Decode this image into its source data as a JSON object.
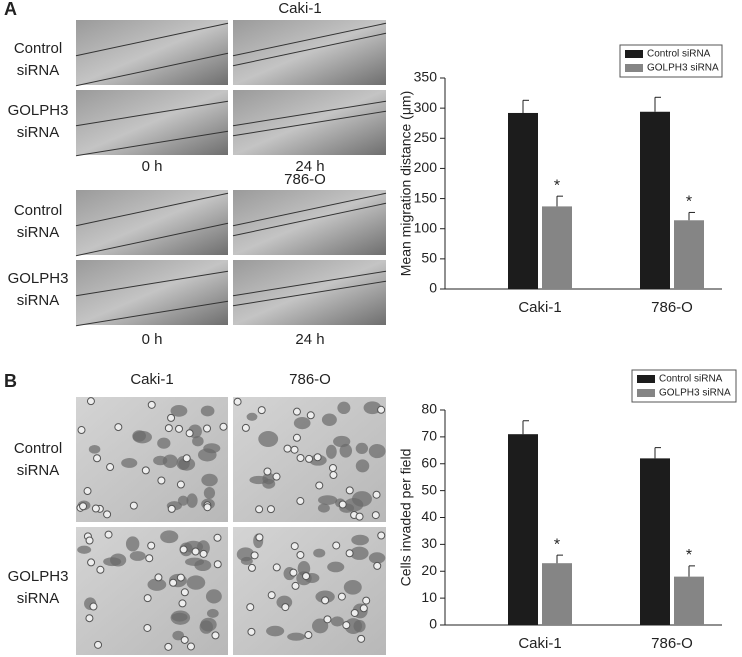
{
  "panel_labels": [
    "A",
    "B"
  ],
  "migration_images": {
    "lines": [
      "Caki-1",
      "786-O"
    ],
    "rows": [
      "Control siRNA",
      "GOLPH3 siRNA"
    ],
    "times": [
      "0 h",
      "24 h"
    ]
  },
  "invasion_images": {
    "columns": [
      "Caki-1",
      "786-O"
    ],
    "rows": [
      "Control siRNA",
      "GOLPH3 siRNA"
    ]
  },
  "chart_data": [
    {
      "type": "bar",
      "ylabel": "Mean migration distance (μm)",
      "categories": [
        "Caki-1",
        "786-O"
      ],
      "series": [
        {
          "name": "Control siRNA",
          "color": "#1c1c1c",
          "values": [
            292,
            294
          ],
          "errors": [
            21,
            24
          ]
        },
        {
          "name": "GOLPH3 siRNA",
          "color": "#858585",
          "values": [
            137,
            114
          ],
          "errors": [
            17,
            13
          ],
          "annotations": [
            "*",
            "*"
          ]
        }
      ],
      "ylim": [
        0,
        350
      ],
      "yticks": [
        0,
        50,
        100,
        150,
        200,
        250,
        300,
        350
      ],
      "legend": "upper right"
    },
    {
      "type": "bar",
      "ylabel": "Cells invaded per field",
      "categories": [
        "Caki-1",
        "786-O"
      ],
      "series": [
        {
          "name": "Control siRNA",
          "color": "#1c1c1c",
          "values": [
            71,
            62
          ],
          "errors": [
            5,
            4
          ]
        },
        {
          "name": "GOLPH3 siRNA",
          "color": "#858585",
          "values": [
            23,
            18
          ],
          "errors": [
            3,
            4
          ],
          "annotations": [
            "*",
            "*"
          ]
        }
      ],
      "ylim": [
        0,
        80
      ],
      "yticks": [
        0,
        10,
        20,
        30,
        40,
        50,
        60,
        70,
        80
      ],
      "legend": "upper right"
    }
  ]
}
